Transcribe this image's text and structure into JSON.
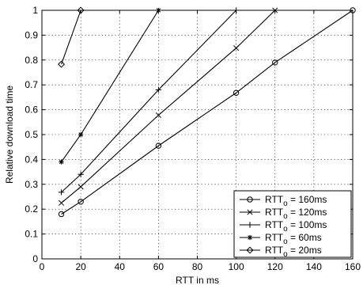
{
  "chart_data": {
    "type": "line",
    "title": "",
    "xlabel": "RTT in ms",
    "ylabel": "Relative download time",
    "xlim": [
      0,
      160
    ],
    "ylim": [
      0,
      1
    ],
    "xticks": [
      0,
      20,
      40,
      60,
      80,
      100,
      120,
      140,
      160
    ],
    "yticks": [
      0,
      0.1,
      0.2,
      0.3,
      0.4,
      0.5,
      0.6,
      0.7,
      0.8,
      0.9,
      1
    ],
    "grid": true,
    "legend_position": "bottom-right",
    "series": [
      {
        "name_main": "RTT",
        "name_sub": "o",
        "name_suffix": " = 160ms",
        "marker": "circle",
        "x": [
          10,
          20,
          60,
          100,
          120,
          160
        ],
        "y": [
          0.18,
          0.23,
          0.455,
          0.668,
          0.79,
          1.0
        ]
      },
      {
        "name_main": "RTT",
        "name_sub": "o",
        "name_suffix": " = 120ms",
        "marker": "x",
        "x": [
          10,
          20,
          60,
          100,
          120
        ],
        "y": [
          0.225,
          0.29,
          0.578,
          0.848,
          1.0
        ]
      },
      {
        "name_main": "RTT",
        "name_sub": "o",
        "name_suffix": " = 100ms",
        "marker": "plus",
        "x": [
          10,
          20,
          60,
          100
        ],
        "y": [
          0.268,
          0.34,
          0.68,
          1.0
        ]
      },
      {
        "name_main": "RTT",
        "name_sub": "o",
        "name_suffix": " = 60ms",
        "marker": "star",
        "x": [
          10,
          20,
          60
        ],
        "y": [
          0.39,
          0.5,
          1.0
        ]
      },
      {
        "name_main": "RTT",
        "name_sub": "o",
        "name_suffix": " = 20ms",
        "marker": "diamond",
        "x": [
          10,
          20
        ],
        "y": [
          0.783,
          1.0
        ]
      }
    ]
  }
}
